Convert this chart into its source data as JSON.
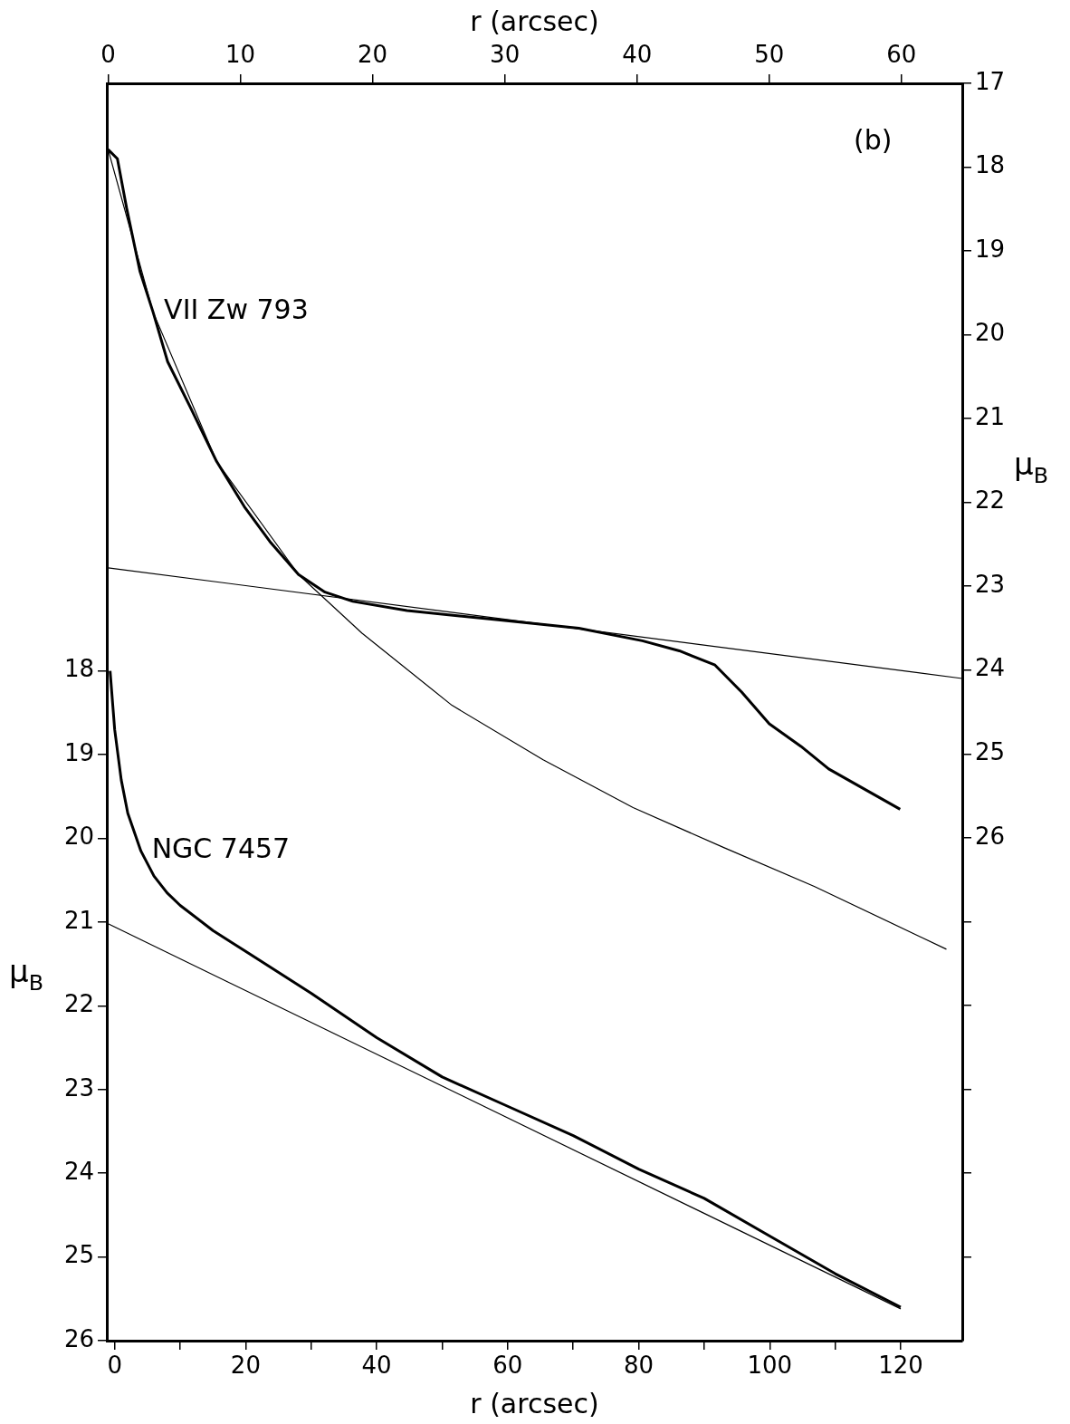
{
  "chart_data": [
    {
      "type": "line",
      "xlabel": "r (arcsec)",
      "ylabel": "μ$_{B}$",
      "xlim": [
        -0.1,
        64.6
      ],
      "xticks": [
        0,
        10,
        20,
        30,
        40,
        50,
        60
      ],
      "ylim": [
        32,
        17
      ],
      "yticks": [
        17,
        18,
        19,
        20,
        21,
        22,
        23,
        24,
        25,
        26,
        {
          "value": 27,
          "label": null
        },
        {
          "value": 28,
          "label": null
        },
        {
          "value": 29,
          "label": null
        },
        {
          "value": 30,
          "label": null
        },
        {
          "value": 31,
          "label": null
        }
      ],
      "grid": false,
      "legend": false,
      "marker": "none",
      "line_style": "solid",
      "series": [
        {
          "name": "VII Zw 793",
          "color": "#000000",
          "x": [
            0,
            0.7,
            1.4,
            2.4,
            3.4,
            4.5,
            6.2,
            8.2,
            10.3,
            12.3,
            14.4,
            16.4,
            18.5,
            22.6,
            29.5,
            35.6,
            40.4,
            43.2,
            45.9,
            47.9,
            50,
            52.4,
            54.5,
            59.9
          ],
          "values": [
            17.79,
            17.9,
            18.49,
            19.24,
            19.73,
            20.32,
            20.86,
            21.51,
            22.05,
            22.48,
            22.86,
            23.07,
            23.18,
            23.29,
            23.4,
            23.5,
            23.65,
            23.77,
            23.94,
            24.26,
            24.64,
            24.91,
            25.18,
            25.66
          ]
        },
        {
          "color": "#000000",
          "x": [
            0,
            3.4,
            8.2,
            14.4,
            19.2,
            26,
            32.9,
            39.7,
            46.6,
            53.4,
            63.4
          ],
          "values": [
            17.79,
            19.73,
            21.51,
            22.86,
            23.56,
            24.42,
            25.07,
            25.64,
            26.12,
            26.58,
            27.33
          ]
        },
        {
          "color": "#000000",
          "x": [
            0,
            64.6
          ],
          "values": [
            22.78,
            24.1
          ]
        }
      ]
    },
    {
      "type": "line",
      "xlabel": "r (arcsec)",
      "ylabel": "μ$_{B}$",
      "annotations": [
        "(b)"
      ],
      "xlim": [
        -1.2,
        129.4
      ],
      "xticks": [
        0,
        {
          "value": 10,
          "label": null
        },
        20,
        {
          "value": 30,
          "label": null
        },
        40,
        {
          "value": 50,
          "label": null
        },
        60,
        {
          "value": 70,
          "label": null
        },
        80,
        {
          "value": 90,
          "label": null
        },
        100,
        {
          "value": 110,
          "label": null
        },
        120
      ],
      "ylim": [
        26,
        10.98
      ],
      "yticks": [
        18,
        19,
        20,
        21,
        22,
        23,
        24,
        25,
        26
      ],
      "grid": false,
      "legend": false,
      "marker": "none",
      "line_style": "solid",
      "series": [
        {
          "name": "NGC 7457",
          "color": "#000000",
          "x": [
            -0.7,
            0,
            1,
            2,
            4,
            6,
            8,
            10,
            15,
            20,
            30,
            40,
            50,
            60,
            70,
            80,
            90,
            100,
            110,
            120
          ],
          "values": [
            18.0,
            18.7,
            19.3,
            19.7,
            20.15,
            20.45,
            20.65,
            20.8,
            21.1,
            21.35,
            21.85,
            22.38,
            22.85,
            23.2,
            23.55,
            23.95,
            24.3,
            24.75,
            25.2,
            25.6
          ]
        },
        {
          "color": "#000000",
          "x": [
            -1,
            120
          ],
          "values": [
            21.02,
            25.62
          ]
        }
      ]
    }
  ]
}
